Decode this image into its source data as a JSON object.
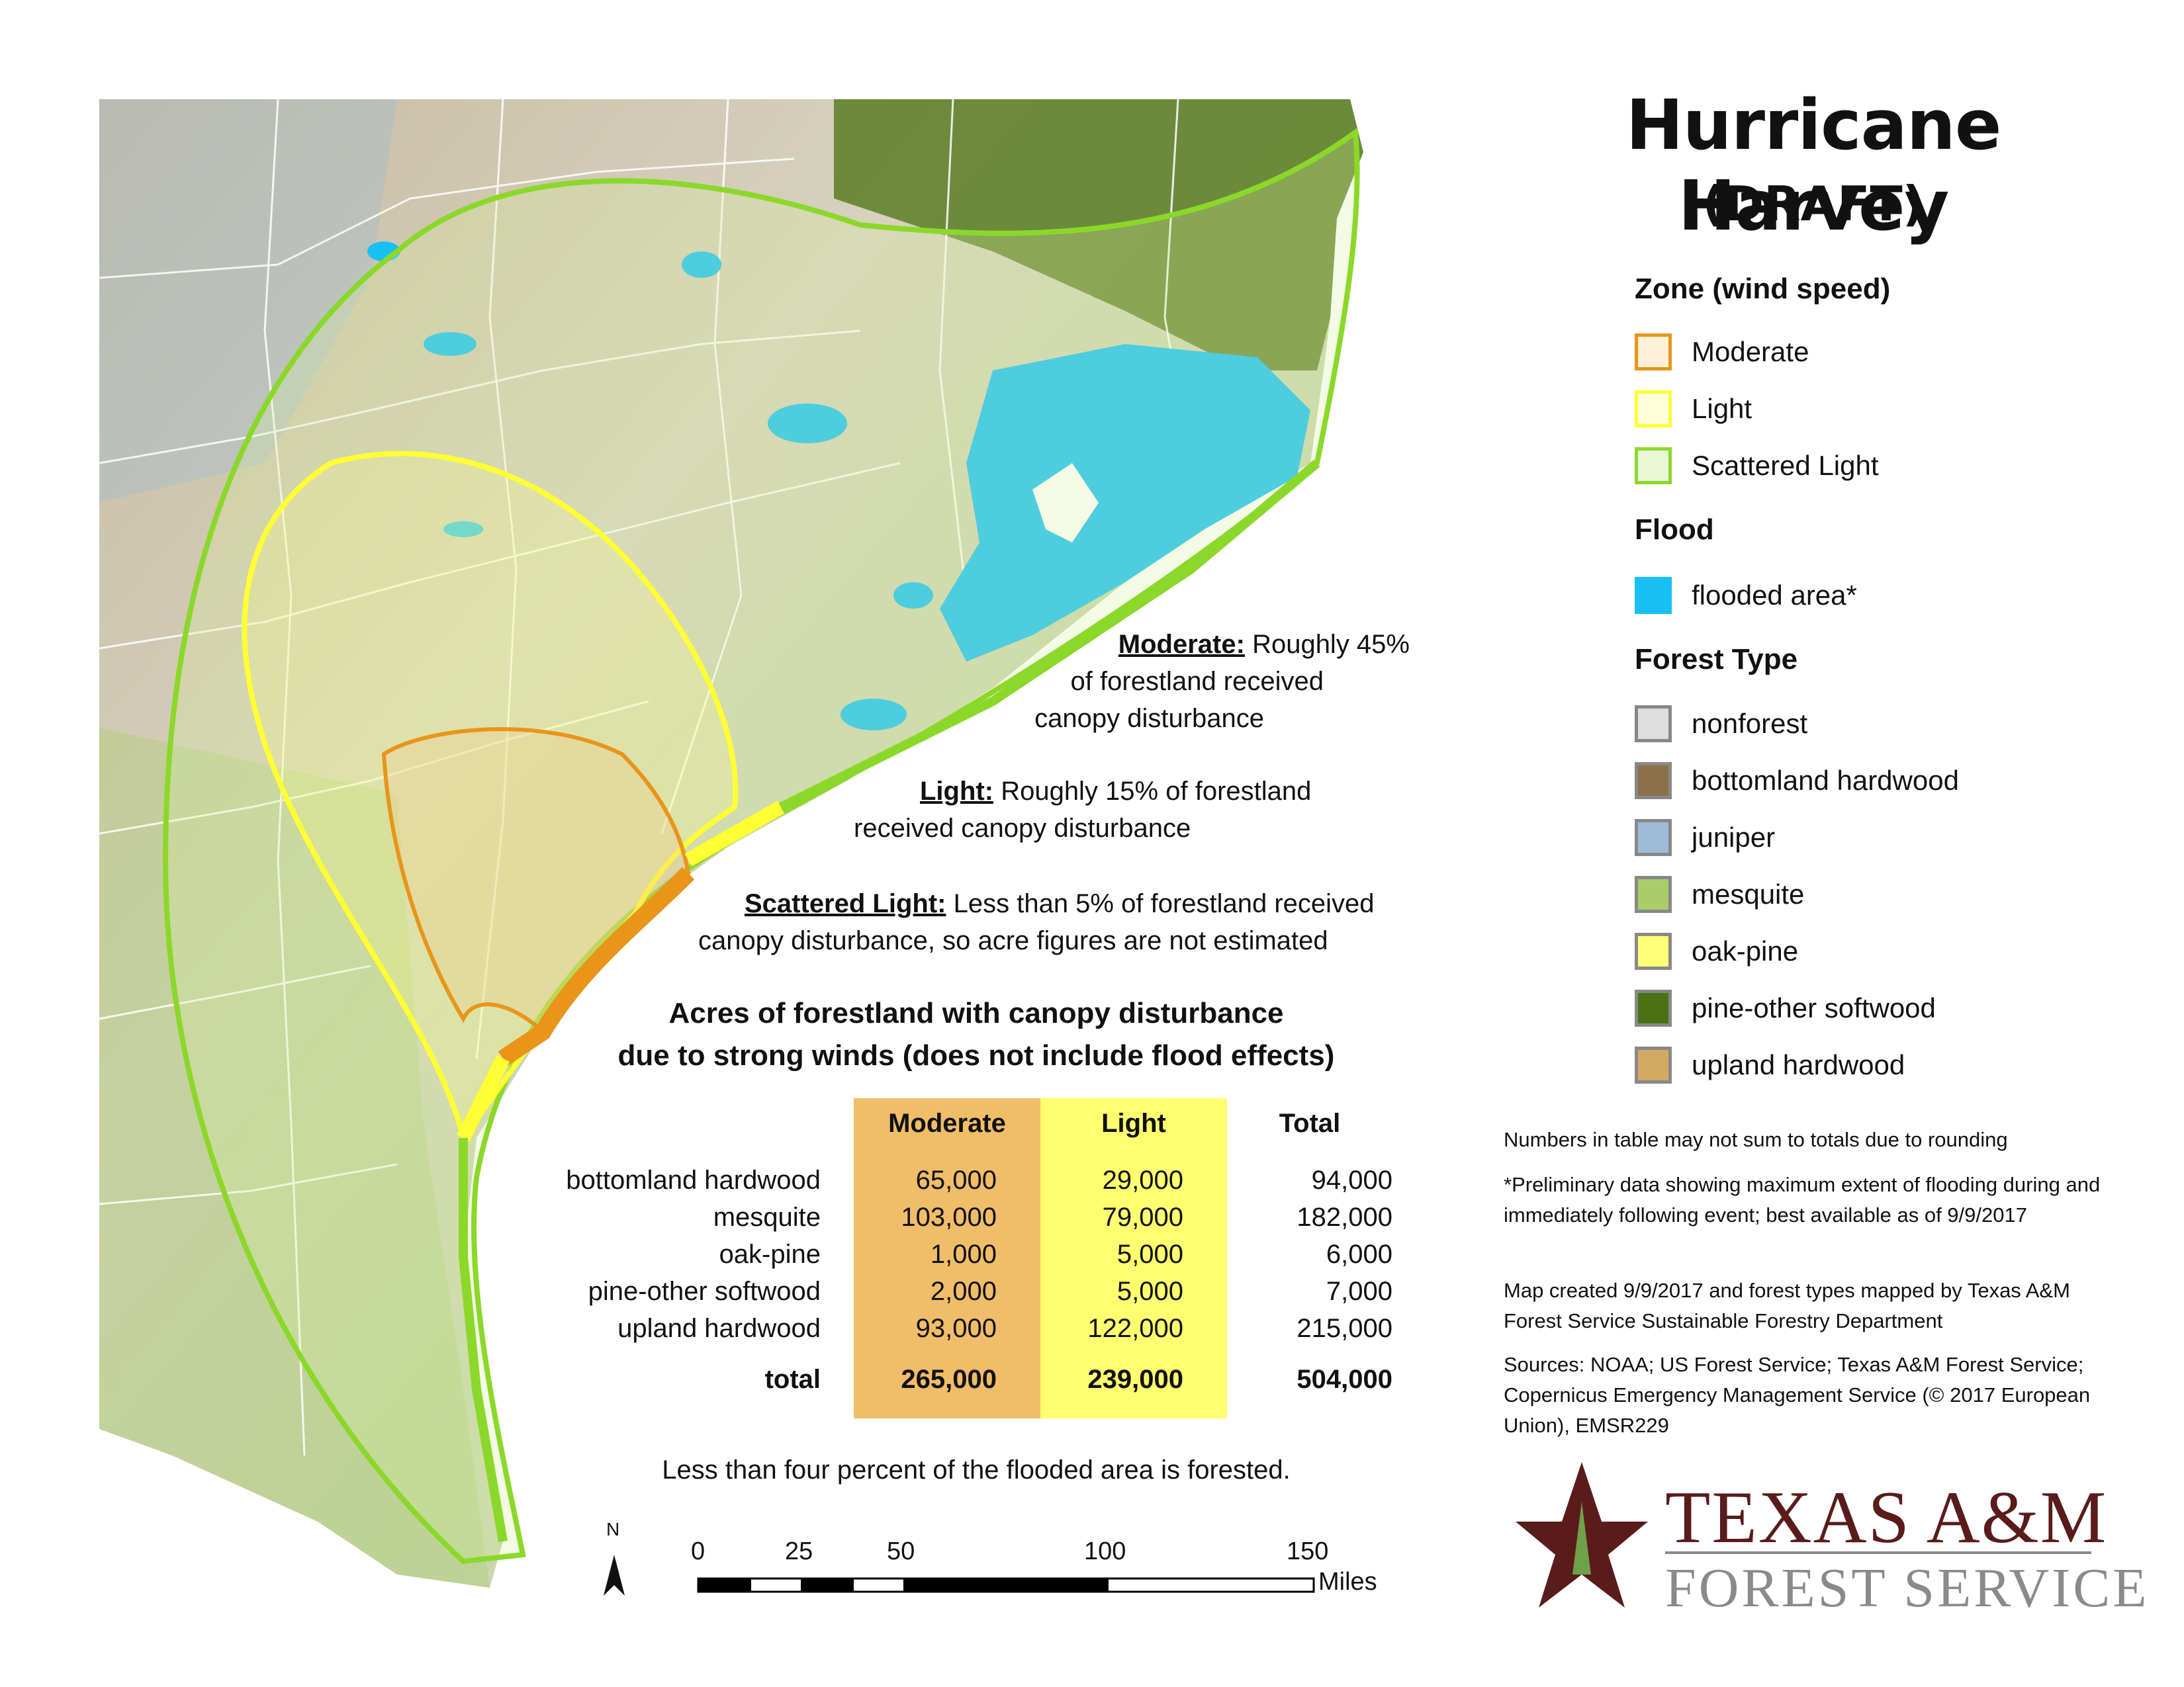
{
  "title": "Hurricane Harvey",
  "subtitle": "(DRAFT)",
  "legend": {
    "zone_heading": "Zone (wind speed)",
    "zones": [
      {
        "label": "Moderate",
        "fill": "#fdf0d6",
        "stroke": "#e8951a"
      },
      {
        "label": "Light",
        "fill": "#ffffd9",
        "stroke": "#ffff33"
      },
      {
        "label": "Scattered Light",
        "fill": "#eaf7d4",
        "stroke": "#8bd82a"
      }
    ],
    "flood_heading": "Flood",
    "flood": [
      {
        "label": "flooded area*",
        "fill": "#18c0f5",
        "stroke": "#18c0f5"
      }
    ],
    "forest_heading": "Forest Type",
    "forest_types": [
      {
        "label": "nonforest",
        "fill": "#dedede",
        "stroke": "#999999"
      },
      {
        "label": "bottomland hardwood",
        "fill": "#8b7148",
        "stroke": "#999999"
      },
      {
        "label": "juniper",
        "fill": "#9fbbd8",
        "stroke": "#999999"
      },
      {
        "label": "mesquite",
        "fill": "#a9cd68",
        "stroke": "#999999"
      },
      {
        "label": "oak-pine",
        "fill": "#ffff77",
        "stroke": "#999999"
      },
      {
        "label": "pine-other softwood",
        "fill": "#4a7212",
        "stroke": "#999999"
      },
      {
        "label": "upland hardwood",
        "fill": "#d4aa62",
        "stroke": "#999999"
      }
    ]
  },
  "notes": [
    "Numbers in table may not sum to totals due to rounding",
    "*Preliminary data showing maximum extent of flooding during and immediately following event; best available as of 9/9/2017",
    "Map created 9/9/2017 and forest types mapped by Texas A&M Forest Service Sustainable Forestry Department",
    "Sources:  NOAA; US Forest Service; Texas A&M Forest Service; Copernicus Emergency Management Service (© 2017 European Union), EMSR229"
  ],
  "callouts": {
    "moderate_label": "Moderate:",
    "moderate_line1": "Roughly 45%",
    "moderate_line2": "of forestland received",
    "moderate_line3": "canopy disturbance",
    "light_label": "Light:",
    "light_line1": "Roughly 15% of forestland",
    "light_line2": "received canopy disturbance",
    "scattered_label": "Scattered Light:",
    "scattered_line1": "Less than 5% of forestland received",
    "scattered_line2": "canopy disturbance, so acre figures are not estimated"
  },
  "table": {
    "title_line1": "Acres of forestland with canopy disturbance",
    "title_line2": "due to strong winds (does not include flood effects)",
    "headers": {
      "moderate": "Moderate",
      "light": "Light",
      "total": "Total"
    },
    "rows": [
      {
        "category": "bottomland hardwood",
        "moderate": "65,000",
        "light": "29,000",
        "total": "94,000"
      },
      {
        "category": "mesquite",
        "moderate": "103,000",
        "light": "79,000",
        "total": "182,000"
      },
      {
        "category": "oak-pine",
        "moderate": "1,000",
        "light": "5,000",
        "total": "6,000"
      },
      {
        "category": "pine-other softwood",
        "moderate": "2,000",
        "light": "5,000",
        "total": "7,000"
      },
      {
        "category": "upland hardwood",
        "moderate": "93,000",
        "light": "122,000",
        "total": "215,000"
      }
    ],
    "total_row": {
      "category": "total",
      "moderate": "265,000",
      "light": "239,000",
      "total": "504,000"
    }
  },
  "flood_note": "Less than four percent of the flooded area is forested.",
  "scale_bar": {
    "ticks": [
      "0",
      "25",
      "50",
      "100",
      "150"
    ],
    "unit": "Miles"
  },
  "north_arrow": {
    "label": "N"
  },
  "logo": {
    "line1": "TEXAS A&M",
    "line2": "FOREST SERVICE"
  },
  "map_colors": {
    "land": "#dcdcd4",
    "county_lines": "#ffffff",
    "flood": "#18c0f5",
    "moderate_zone": "#e8951a",
    "light_zone": "#ffff33",
    "scattered_zone": "#8bd82a"
  }
}
